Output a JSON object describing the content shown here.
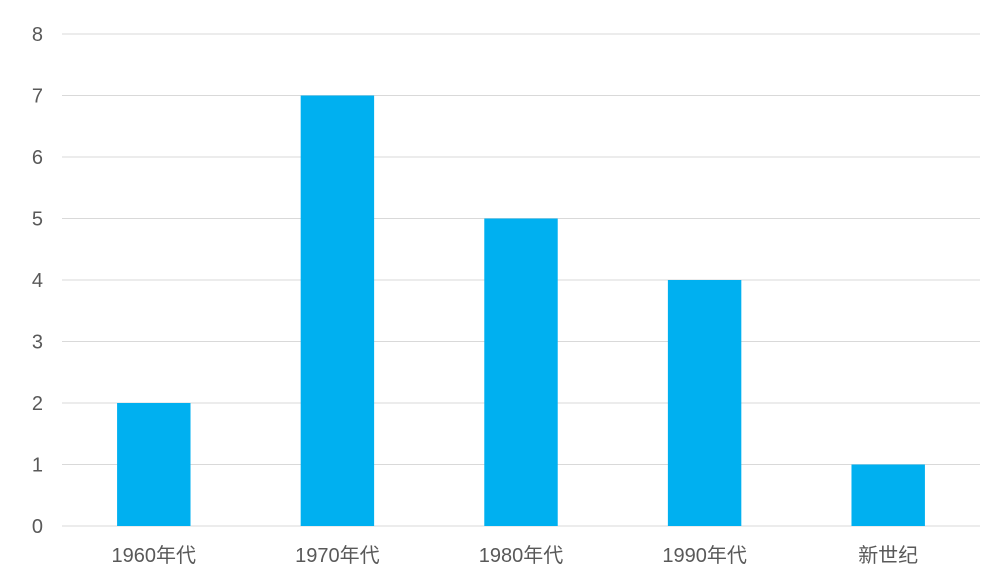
{
  "chart_data": {
    "type": "bar",
    "title": "",
    "xlabel": "",
    "ylabel": "",
    "categories": [
      "1960年代",
      "1970年代",
      "1980年代",
      "1990年代",
      "新世纪"
    ],
    "values": [
      2,
      7,
      5,
      4,
      1
    ],
    "ylim": [
      0,
      8
    ],
    "yticks": [
      "0",
      "1",
      "2",
      "3",
      "4",
      "5",
      "6",
      "7",
      "8"
    ],
    "grid": true,
    "legend": "none",
    "bar_color": "#00b0f0",
    "grid_color": "#d9d9d9",
    "text_color": "#595959"
  }
}
